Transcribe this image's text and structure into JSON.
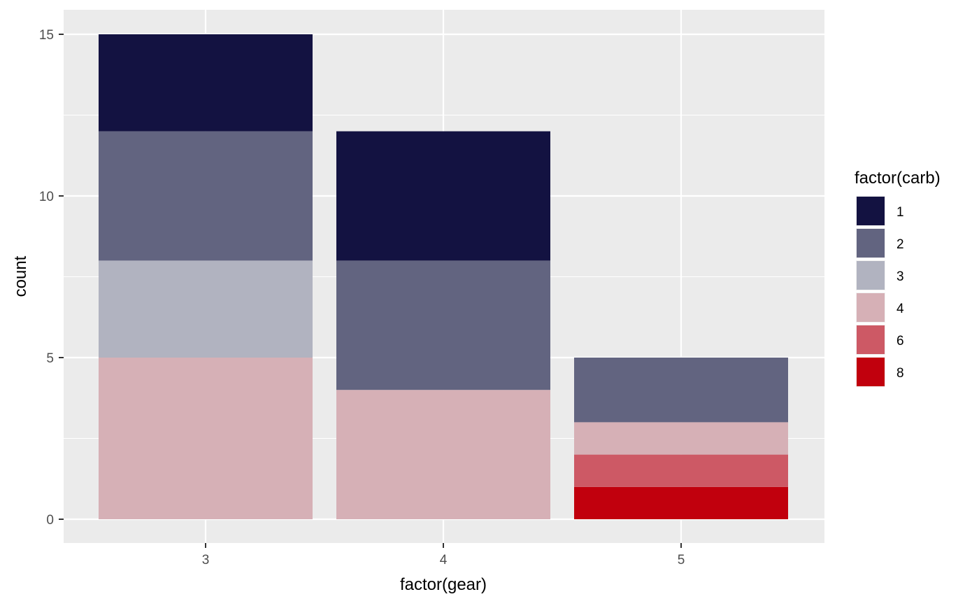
{
  "chart_data": {
    "type": "bar",
    "stacked": true,
    "title": "",
    "xlabel": "factor(gear)",
    "ylabel": "count",
    "categories": [
      "3",
      "4",
      "5"
    ],
    "ylim": [
      0,
      15
    ],
    "yticks": [
      0,
      5,
      10,
      15
    ],
    "legend": {
      "title": "factor(carb)",
      "position": "right"
    },
    "series": [
      {
        "name": "1",
        "color": "#131241",
        "values": [
          3,
          4,
          0
        ]
      },
      {
        "name": "2",
        "color": "#626480",
        "values": [
          4,
          4,
          2
        ]
      },
      {
        "name": "3",
        "color": "#b1b3c0",
        "values": [
          3,
          0,
          0
        ]
      },
      {
        "name": "4",
        "color": "#d6b0b6",
        "values": [
          5,
          4,
          1
        ]
      },
      {
        "name": "6",
        "color": "#cd5965",
        "values": [
          0,
          0,
          1
        ]
      },
      {
        "name": "8",
        "color": "#c1000d",
        "values": [
          0,
          0,
          1
        ]
      }
    ]
  },
  "theme": {
    "panel_background": "#ebebeb",
    "grid_color": "#ffffff",
    "grid": true
  }
}
